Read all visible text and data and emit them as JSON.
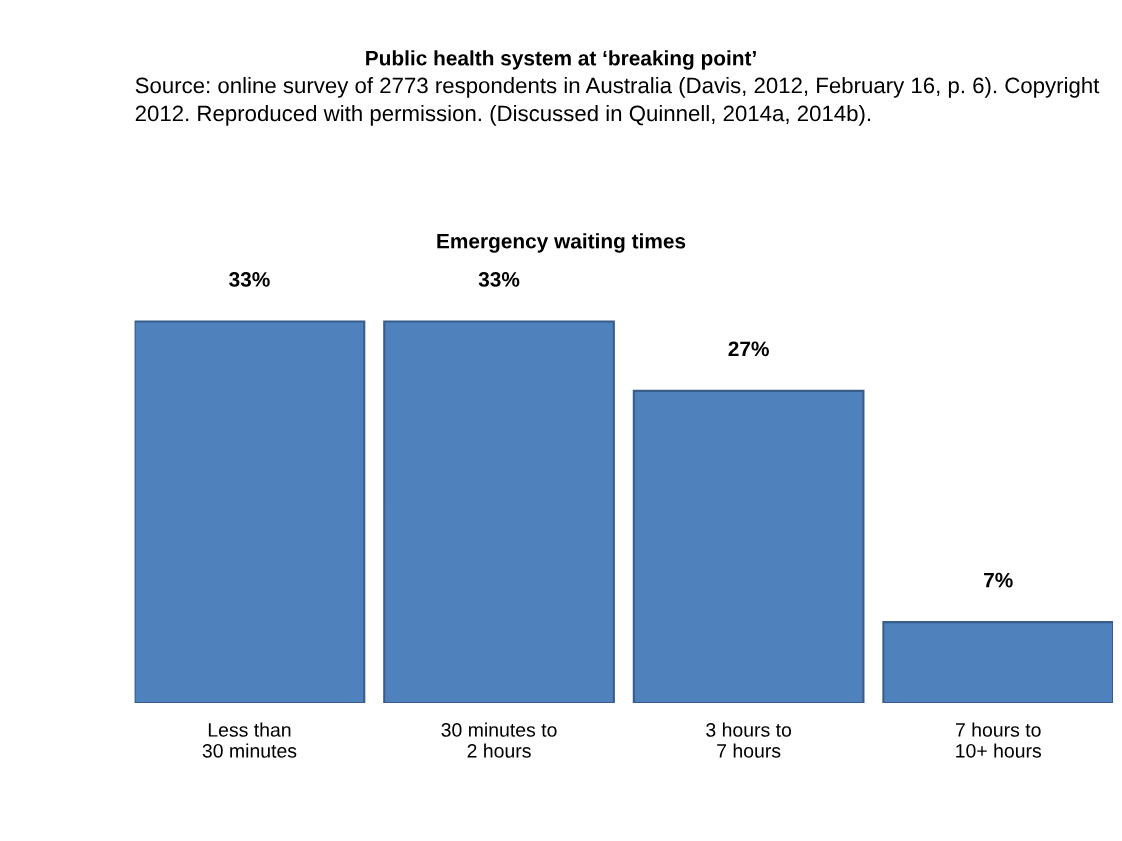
{
  "chart_data": {
    "type": "bar",
    "title": "Public health system at ‘breaking point’",
    "subtitle": "Emergency waiting times",
    "annotations": [
      "Source: online survey of 2773 respondents in Australia (Davis, 2012, February 16, p. 6). Copyright 2012. Reproduced with permission. (Discussed in Quinnell, 2014a, 2014b)."
    ],
    "categories": [
      "Less than\n30 minutes",
      "30 minutes to\n2 hours",
      "3 hours to\n7 hours",
      "7 hours to\n10+ hours"
    ],
    "values": [
      33,
      33,
      27,
      7
    ],
    "value_labels": [
      "33%",
      "33%",
      "27%",
      "7%"
    ],
    "color": "#4f81bd",
    "grid": false,
    "legend": false
  }
}
